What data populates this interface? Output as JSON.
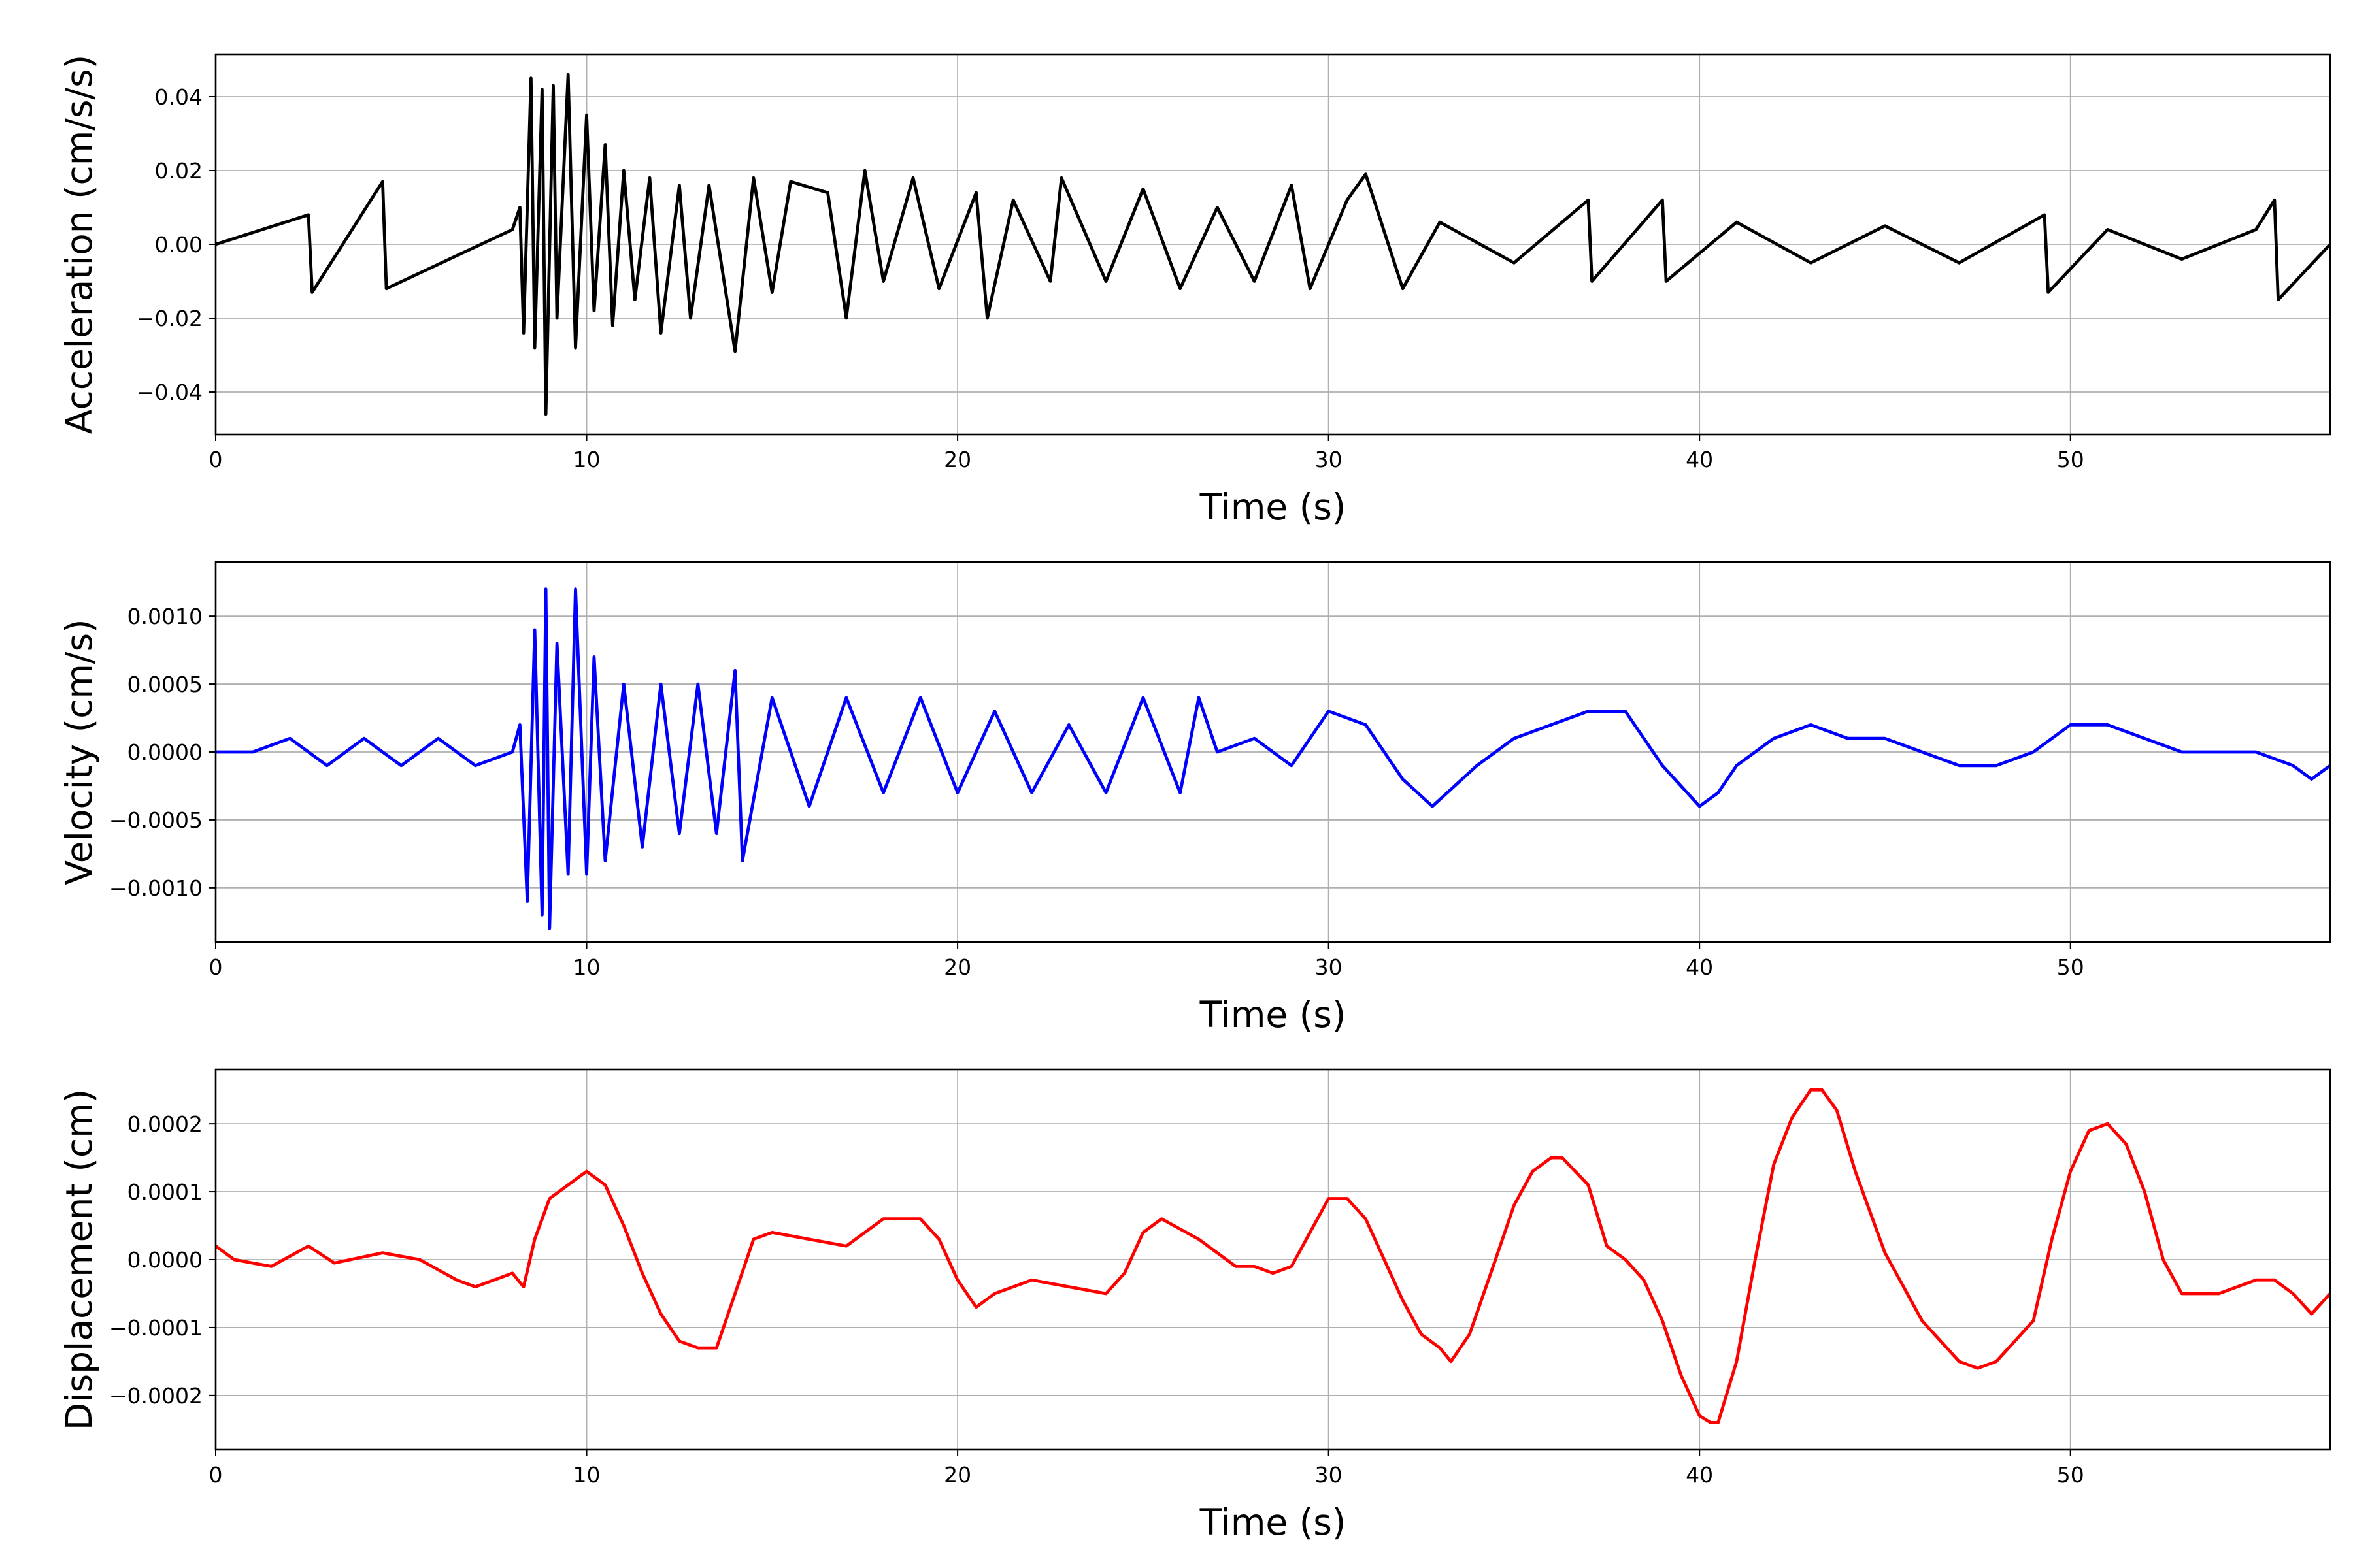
{
  "chart_data": [
    {
      "type": "line",
      "xlabel": "Time (s)",
      "ylabel": "Acceleration (cm/s/s)",
      "xlim": [
        0,
        57
      ],
      "ylim": [
        -0.0515,
        0.0515
      ],
      "xticks": [
        0,
        10,
        20,
        30,
        40,
        50
      ],
      "xtick_labels": [
        "0",
        "10",
        "20",
        "30",
        "40",
        "50"
      ],
      "yticks": [
        -0.04,
        -0.02,
        0.0,
        0.02,
        0.04
      ],
      "ytick_labels": [
        "−0.04",
        "−0.02",
        "0.00",
        "0.02",
        "0.04"
      ],
      "grid": true,
      "series": [
        {
          "color": "#000000",
          "x": [
            0,
            2.5,
            2.6,
            4.5,
            4.6,
            8.0,
            8.2,
            8.3,
            8.5,
            8.6,
            8.8,
            8.9,
            9.1,
            9.2,
            9.5,
            9.7,
            10.0,
            10.2,
            10.5,
            10.7,
            11.0,
            11.3,
            11.7,
            12.0,
            12.5,
            12.8,
            13.3,
            14.0,
            14.5,
            15.0,
            15.5,
            16.5,
            17.0,
            17.5,
            18.0,
            18.8,
            19.5,
            20.5,
            20.8,
            21.5,
            22.5,
            22.8,
            24.0,
            25.0,
            26.0,
            27.0,
            28.0,
            29.0,
            29.5,
            30.5,
            31.0,
            32.0,
            33.0,
            35.0,
            37.0,
            37.1,
            39.0,
            39.1,
            41.0,
            43.0,
            45.0,
            47.0,
            49.3,
            49.4,
            51.0,
            53.0,
            55.0,
            55.5,
            55.6,
            57.0
          ],
          "y": [
            0.0,
            0.008,
            -0.013,
            0.017,
            -0.012,
            0.004,
            0.01,
            -0.024,
            0.045,
            -0.028,
            0.042,
            -0.046,
            0.043,
            -0.02,
            0.046,
            -0.028,
            0.035,
            -0.018,
            0.027,
            -0.022,
            0.02,
            -0.015,
            0.018,
            -0.024,
            0.016,
            -0.02,
            0.016,
            -0.029,
            0.018,
            -0.013,
            0.017,
            0.014,
            -0.02,
            0.02,
            -0.01,
            0.018,
            -0.012,
            0.014,
            -0.02,
            0.012,
            -0.01,
            0.018,
            -0.01,
            0.015,
            -0.012,
            0.01,
            -0.01,
            0.016,
            -0.012,
            0.012,
            0.019,
            -0.012,
            0.006,
            -0.005,
            0.012,
            -0.01,
            0.012,
            -0.01,
            0.006,
            -0.005,
            0.005,
            -0.005,
            0.008,
            -0.013,
            0.004,
            -0.004,
            0.004,
            0.012,
            -0.015,
            0.0
          ]
        }
      ]
    },
    {
      "type": "line",
      "xlabel": "Time (s)",
      "ylabel": "Velocity (cm/s)",
      "xlim": [
        0,
        57
      ],
      "ylim": [
        -0.0014,
        0.0014
      ],
      "xticks": [
        0,
        10,
        20,
        30,
        40,
        50
      ],
      "xtick_labels": [
        "0",
        "10",
        "20",
        "30",
        "40",
        "50"
      ],
      "yticks": [
        -0.001,
        -0.0005,
        0.0,
        0.0005,
        0.001
      ],
      "ytick_labels": [
        "−0.0010",
        "−0.0005",
        "0.0000",
        "0.0005",
        "0.0010"
      ],
      "grid": true,
      "series": [
        {
          "color": "#0000ff",
          "x": [
            0,
            1,
            2,
            3,
            4,
            5,
            6,
            7,
            8,
            8.2,
            8.4,
            8.6,
            8.8,
            8.9,
            9.0,
            9.2,
            9.5,
            9.7,
            10.0,
            10.2,
            10.5,
            11.0,
            11.5,
            12.0,
            12.5,
            13.0,
            13.5,
            14.0,
            14.2,
            15.0,
            16.0,
            17.0,
            18.0,
            19.0,
            20.0,
            21.0,
            22.0,
            23.0,
            24.0,
            25.0,
            26.0,
            26.5,
            27.0,
            28.0,
            29.0,
            30.0,
            31.0,
            32.0,
            32.8,
            33.2,
            34.0,
            35.0,
            36.0,
            37.0,
            38.0,
            38.5,
            39.0,
            40.0,
            40.5,
            41.0,
            42.0,
            43.0,
            44.0,
            45.0,
            46.0,
            47.0,
            48.0,
            49.0,
            50.0,
            51.0,
            52.0,
            53.0,
            54.0,
            55.0,
            56.0,
            56.5,
            57.0
          ],
          "y": [
            0.0,
            0.0,
            0.0001,
            -0.0001,
            0.0001,
            -0.0001,
            0.0001,
            -0.0001,
            0.0,
            0.0002,
            -0.0011,
            0.0009,
            -0.0012,
            0.0012,
            -0.0013,
            0.0008,
            -0.0009,
            0.0012,
            -0.0009,
            0.0007,
            -0.0008,
            0.0005,
            -0.0007,
            0.0005,
            -0.0006,
            0.0005,
            -0.0006,
            0.0006,
            -0.0008,
            0.0004,
            -0.0004,
            0.0004,
            -0.0003,
            0.0004,
            -0.0003,
            0.0003,
            -0.0003,
            0.0002,
            -0.0003,
            0.0004,
            -0.0003,
            0.0004,
            0.0,
            0.0001,
            -0.0001,
            0.0003,
            0.0002,
            -0.0002,
            -0.0004,
            -0.0003,
            -0.0001,
            0.0001,
            0.0002,
            0.0003,
            0.0003,
            0.0001,
            -0.0001,
            -0.0004,
            -0.0003,
            -0.0001,
            0.0001,
            0.0002,
            0.0001,
            0.0001,
            0.0,
            -0.0001,
            -0.0001,
            0.0,
            0.0002,
            0.0002,
            0.0001,
            0.0,
            0.0,
            0.0,
            -0.0001,
            -0.0002,
            -0.0001
          ]
        }
      ]
    },
    {
      "type": "line",
      "xlabel": "Time (s)",
      "ylabel": "Displacement (cm)",
      "xlim": [
        0,
        57
      ],
      "ylim": [
        -0.00028,
        0.00028
      ],
      "xticks": [
        0,
        10,
        20,
        30,
        40,
        50
      ],
      "xtick_labels": [
        "0",
        "10",
        "20",
        "30",
        "40",
        "50"
      ],
      "yticks": [
        -0.0002,
        -0.0001,
        0.0,
        0.0001,
        0.0002
      ],
      "ytick_labels": [
        "−0.0002",
        "−0.0001",
        "0.0000",
        "0.0001",
        "0.0002"
      ],
      "grid": true,
      "series": [
        {
          "color": "#ff0000",
          "x": [
            0,
            0.5,
            1.5,
            2.5,
            3.2,
            4.5,
            5.5,
            6.5,
            7.0,
            7.5,
            8.0,
            8.3,
            8.6,
            9.0,
            9.5,
            10.0,
            10.5,
            11.0,
            11.5,
            12.0,
            12.5,
            13.0,
            13.5,
            14.0,
            14.5,
            15.0,
            16.0,
            17.0,
            18.0,
            19.0,
            19.5,
            20.0,
            20.5,
            21.0,
            22.0,
            23.0,
            24.0,
            24.5,
            25.0,
            25.5,
            26.5,
            27.5,
            28.0,
            28.5,
            29.0,
            29.5,
            30.0,
            30.5,
            31.0,
            31.5,
            32.0,
            32.5,
            33.0,
            33.3,
            33.8,
            34.5,
            35.0,
            35.5,
            36.0,
            36.3,
            37.0,
            37.5,
            38.0,
            38.5,
            39.0,
            39.5,
            40.0,
            40.3,
            40.5,
            41.0,
            41.5,
            42.0,
            42.5,
            43.0,
            43.3,
            43.7,
            44.2,
            45.0,
            46.0,
            47.0,
            47.5,
            48.0,
            48.5,
            49.0,
            49.5,
            50.0,
            50.5,
            51.0,
            51.5,
            52.0,
            52.5,
            53.0,
            54.0,
            55.0,
            55.5,
            56.0,
            56.5,
            57.0
          ],
          "y": [
            2e-05,
            0.0,
            -1e-05,
            2e-05,
            -5e-06,
            1e-05,
            0.0,
            -3e-05,
            -4e-05,
            -3e-05,
            -2e-05,
            -4e-05,
            3e-05,
            9e-05,
            0.00011,
            0.00013,
            0.00011,
            5e-05,
            -2e-05,
            -8e-05,
            -0.00012,
            -0.00013,
            -0.00013,
            -5e-05,
            3e-05,
            4e-05,
            3e-05,
            2e-05,
            6e-05,
            6e-05,
            3e-05,
            -3e-05,
            -7e-05,
            -5e-05,
            -3e-05,
            -4e-05,
            -5e-05,
            -2e-05,
            4e-05,
            6e-05,
            3e-05,
            -1e-05,
            -1e-05,
            -2e-05,
            -1e-05,
            4e-05,
            9e-05,
            9e-05,
            6e-05,
            0.0,
            -6e-05,
            -0.00011,
            -0.00013,
            -0.00015,
            -0.00011,
            0.0,
            8e-05,
            0.00013,
            0.00015,
            0.00015,
            0.00011,
            2e-05,
            0.0,
            -3e-05,
            -9e-05,
            -0.00017,
            -0.00023,
            -0.00024,
            -0.00024,
            -0.00015,
            0.0,
            0.00014,
            0.00021,
            0.00025,
            0.00025,
            0.00022,
            0.00013,
            1e-05,
            -9e-05,
            -0.00015,
            -0.00016,
            -0.00015,
            -0.00012,
            -9e-05,
            3e-05,
            0.00013,
            0.00019,
            0.0002,
            0.00017,
            0.0001,
            0.0,
            -5e-05,
            -5e-05,
            -3e-05,
            -3e-05,
            -5e-05,
            -8e-05,
            -5e-05
          ]
        }
      ]
    }
  ]
}
